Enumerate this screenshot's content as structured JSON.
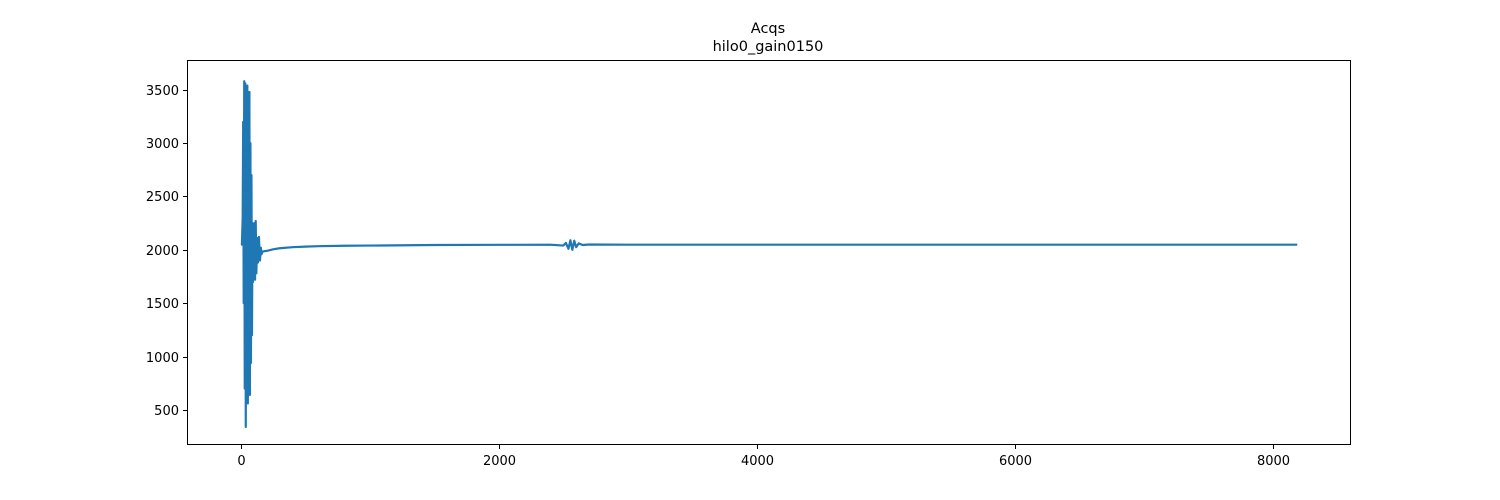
{
  "chart_data": {
    "type": "line",
    "title": "Acqs",
    "subtitle": "hilo0_gain0150",
    "xlabel": "",
    "ylabel": "",
    "xlim": [
      -410,
      8600
    ],
    "ylim": [
      180,
      3770
    ],
    "x_ticks": [
      0,
      2000,
      4000,
      6000,
      8000
    ],
    "y_ticks": [
      500,
      1000,
      1500,
      2000,
      2500,
      3000,
      3500
    ],
    "grid": false,
    "legend": "none",
    "series": [
      {
        "color": "#1f77b4",
        "x_range": [
          0,
          8191
        ],
        "baseline": 2048,
        "points": [
          [
            0,
            2048
          ],
          [
            8,
            2050
          ],
          [
            14,
            2300
          ],
          [
            18,
            3200
          ],
          [
            22,
            1500
          ],
          [
            26,
            3580
          ],
          [
            30,
            700
          ],
          [
            34,
            3560
          ],
          [
            38,
            340
          ],
          [
            42,
            3400
          ],
          [
            46,
            900
          ],
          [
            50,
            3540
          ],
          [
            54,
            560
          ],
          [
            58,
            3250
          ],
          [
            62,
            1100
          ],
          [
            66,
            3480
          ],
          [
            70,
            640
          ],
          [
            74,
            3000
          ],
          [
            78,
            940
          ],
          [
            82,
            2700
          ],
          [
            86,
            1200
          ],
          [
            90,
            2250
          ],
          [
            94,
            1700
          ],
          [
            98,
            2200
          ],
          [
            102,
            1900
          ],
          [
            106,
            2250
          ],
          [
            110,
            1720
          ],
          [
            115,
            2270
          ],
          [
            120,
            1780
          ],
          [
            126,
            2110
          ],
          [
            132,
            1880
          ],
          [
            140,
            2120
          ],
          [
            148,
            1900
          ],
          [
            155,
            2020
          ],
          [
            160,
            1960
          ],
          [
            170,
            1985
          ],
          [
            200,
            1990
          ],
          [
            250,
            2005
          ],
          [
            300,
            2015
          ],
          [
            400,
            2025
          ],
          [
            500,
            2030
          ],
          [
            600,
            2034
          ],
          [
            800,
            2038
          ],
          [
            1000,
            2040
          ],
          [
            1500,
            2045
          ],
          [
            2000,
            2047
          ],
          [
            2400,
            2048
          ],
          [
            2500,
            2040
          ],
          [
            2520,
            2065
          ],
          [
            2540,
            2010
          ],
          [
            2555,
            2090
          ],
          [
            2570,
            2000
          ],
          [
            2585,
            2085
          ],
          [
            2600,
            2025
          ],
          [
            2620,
            2060
          ],
          [
            2650,
            2045
          ],
          [
            2700,
            2050
          ],
          [
            3000,
            2048
          ],
          [
            4000,
            2048
          ],
          [
            5000,
            2048
          ],
          [
            6000,
            2048
          ],
          [
            7000,
            2048
          ],
          [
            8191,
            2048
          ]
        ]
      }
    ]
  }
}
